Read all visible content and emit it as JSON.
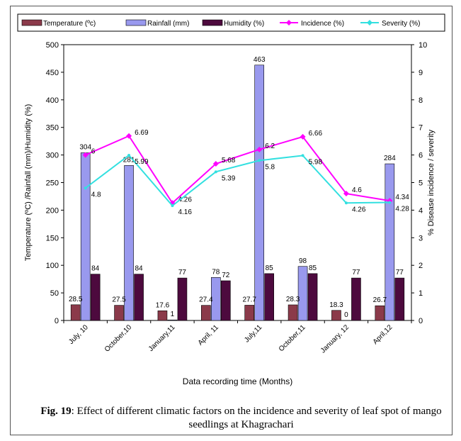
{
  "chart_data": {
    "type": "bar",
    "categories": [
      "July, 10",
      "October,10",
      "January,11",
      "April, 11",
      "July,11",
      "October,11",
      "January, 12",
      "April,12"
    ],
    "series": [
      {
        "name": "Temperature (ºc)",
        "type": "bar",
        "axis": "left",
        "color": "#8b3a4a",
        "values": [
          28.5,
          27.5,
          17.6,
          27.4,
          27.7,
          28.3,
          18.3,
          26.7
        ],
        "labels": [
          "28.5",
          "27.5",
          "17.6",
          "27.4",
          "27.7",
          "28.3",
          "18.3",
          "26.7"
        ]
      },
      {
        "name": "Rainfall (mm)",
        "type": "bar",
        "axis": "left",
        "color": "#9999ee",
        "values": [
          304,
          281,
          1,
          78,
          463,
          98,
          0,
          284
        ],
        "labels": [
          "304",
          "281",
          "1",
          "78",
          "463",
          "98",
          "0",
          "284"
        ]
      },
      {
        "name": "Humidity (%)",
        "type": "bar",
        "axis": "left",
        "color": "#4d0a3e",
        "values": [
          84,
          84,
          77,
          72,
          85,
          85,
          77,
          77
        ],
        "labels": [
          "84",
          "84",
          "77",
          "72",
          "85",
          "85",
          "77",
          "77"
        ]
      },
      {
        "name": "Incidence (%)",
        "type": "line",
        "axis": "right",
        "color": "#ff00ff",
        "values": [
          6,
          6.69,
          4.26,
          5.68,
          6.2,
          6.66,
          4.6,
          4.34
        ],
        "labels": [
          "6",
          "6.69",
          "4.26",
          "5.68",
          "6.2",
          "6.66",
          "4.6",
          "4.34"
        ]
      },
      {
        "name": "Severity (%)",
        "type": "line",
        "axis": "right",
        "color": "#33e0e0",
        "values": [
          4.8,
          5.99,
          4.16,
          5.39,
          5.8,
          5.98,
          4.26,
          4.28
        ],
        "labels": [
          "4.8",
          "5.99",
          "4.16",
          "5.39",
          "5.8",
          "5.98",
          "4.26",
          "4.28"
        ]
      }
    ],
    "xlabel": "Data recording time (Months)",
    "ylabel": "Temperature (ºC) /Rainfall (mm)/Humidity (%)",
    "ylabel_right": "% Disease incidence / severity",
    "ylim": [
      0,
      500
    ],
    "y_ticks": [
      0,
      50,
      100,
      150,
      200,
      250,
      300,
      350,
      400,
      450,
      500
    ],
    "ylim_right": [
      0,
      10
    ],
    "y_ticks_right": [
      0,
      1,
      2,
      3,
      4,
      5,
      6,
      7,
      8,
      9,
      10
    ],
    "grid": false,
    "legend_position": "top"
  },
  "caption": {
    "label": "Fig. 19",
    "text": ": Effect of different climatic factors on the incidence and severity of leaf spot of mango seedlings at Khagrachari"
  }
}
